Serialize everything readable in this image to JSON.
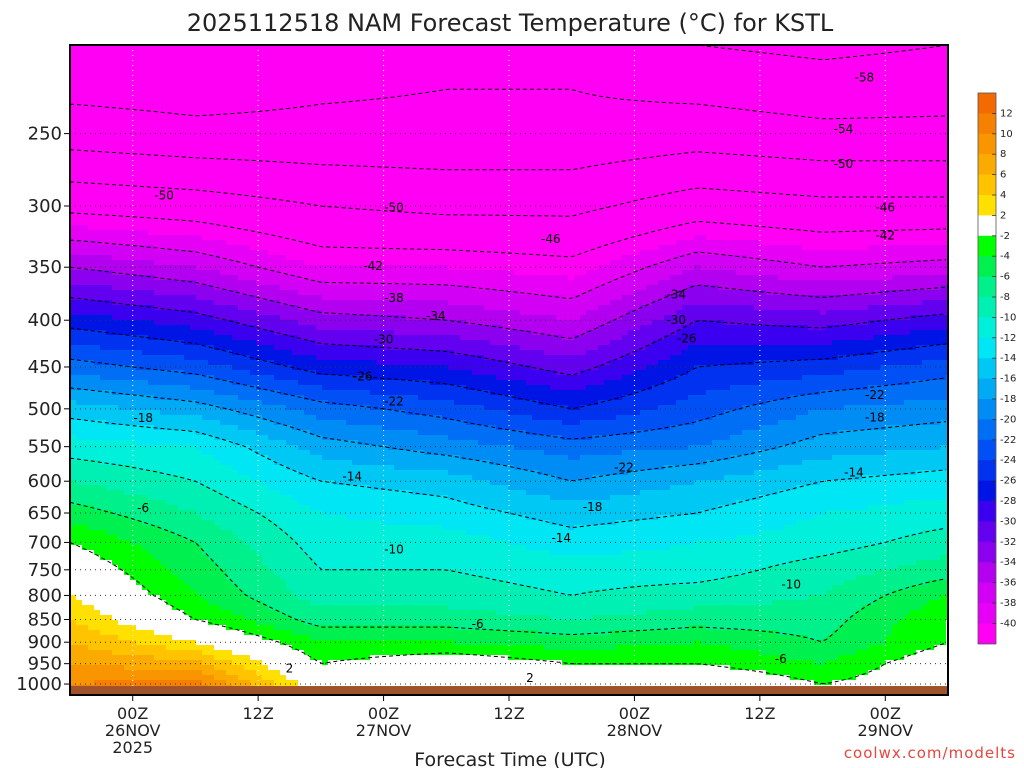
{
  "chart_data": {
    "type": "heatmap",
    "title": "2025112518 NAM Forecast Temperature (°C) for KSTL",
    "xlabel": "Forecast Time (UTC)",
    "ylabel": "",
    "y_axis": {
      "scale": "log-pressure",
      "inverted": true,
      "range": [
        1000,
        200
      ],
      "ticks": [
        250,
        300,
        350,
        400,
        450,
        500,
        550,
        600,
        650,
        700,
        750,
        800,
        850,
        900,
        950,
        1000
      ]
    },
    "x_axis": {
      "range": [
        "2025-11-25 18Z",
        "2025-11-29 06Z"
      ],
      "ticks": [
        {
          "time": "2025-11-26 00Z",
          "lines": [
            "00Z",
            "26NOV",
            "2025"
          ]
        },
        {
          "time": "2025-11-26 12Z",
          "lines": [
            "12Z"
          ]
        },
        {
          "time": "2025-11-27 00Z",
          "lines": [
            "00Z",
            "27NOV"
          ]
        },
        {
          "time": "2025-11-27 12Z",
          "lines": [
            "12Z"
          ]
        },
        {
          "time": "2025-11-28 00Z",
          "lines": [
            "00Z",
            "28NOV"
          ]
        },
        {
          "time": "2025-11-28 12Z",
          "lines": [
            "12Z"
          ]
        },
        {
          "time": "2025-11-29 00Z",
          "lines": [
            "00Z",
            "29NOV"
          ]
        }
      ]
    },
    "grid": true,
    "legend": "right",
    "colorbar": {
      "labels": [
        "12",
        "10",
        "8",
        "6",
        "4",
        "2",
        "-2",
        "-4",
        "-6",
        "-8",
        "-10",
        "-12",
        "-14",
        "-16",
        "-18",
        "-20",
        "-22",
        "-24",
        "-26",
        "-28",
        "-30",
        "-32",
        "-34",
        "-36",
        "-38",
        "-40"
      ],
      "bands": [
        {
          "range": [
            12,
            14
          ],
          "color": "#f36a00"
        },
        {
          "range": [
            10,
            12
          ],
          "color": "#f68000"
        },
        {
          "range": [
            8,
            10
          ],
          "color": "#f89500"
        },
        {
          "range": [
            6,
            8
          ],
          "color": "#fbaa00"
        },
        {
          "range": [
            4,
            6
          ],
          "color": "#ffc300"
        },
        {
          "range": [
            2,
            4
          ],
          "color": "#ffe000"
        },
        {
          "range": [
            -2,
            2
          ],
          "color": "#ffffff"
        },
        {
          "range": [
            -4,
            -2
          ],
          "color": "#00ff00"
        },
        {
          "range": [
            -6,
            -4
          ],
          "color": "#00f050"
        },
        {
          "range": [
            -8,
            -6
          ],
          "color": "#00f08c"
        },
        {
          "range": [
            -10,
            -8
          ],
          "color": "#00f0b4"
        },
        {
          "range": [
            -12,
            -10
          ],
          "color": "#00f0dc"
        },
        {
          "range": [
            -14,
            -12
          ],
          "color": "#00e6f5"
        },
        {
          "range": [
            -16,
            -14
          ],
          "color": "#00c8f5"
        },
        {
          "range": [
            -18,
            -16
          ],
          "color": "#00aaf5"
        },
        {
          "range": [
            -20,
            -18
          ],
          "color": "#008cf5"
        },
        {
          "range": [
            -22,
            -20
          ],
          "color": "#006ef5"
        },
        {
          "range": [
            -24,
            -22
          ],
          "color": "#0050f5"
        },
        {
          "range": [
            -26,
            -24
          ],
          "color": "#0032f0"
        },
        {
          "range": [
            -28,
            -26
          ],
          "color": "#0014e6"
        },
        {
          "range": [
            -30,
            -28
          ],
          "color": "#3c00f0"
        },
        {
          "range": [
            -32,
            -30
          ],
          "color": "#6400f0"
        },
        {
          "range": [
            -34,
            -32
          ],
          "color": "#8c00f0"
        },
        {
          "range": [
            -36,
            -34
          ],
          "color": "#b400f0"
        },
        {
          "range": [
            -38,
            -36
          ],
          "color": "#d200f5"
        },
        {
          "range": [
            -40,
            -38
          ],
          "color": "#e600f5"
        },
        {
          "range": [
            -60,
            -40
          ],
          "color": "#ff00f5"
        }
      ]
    },
    "isotherm_profiles": [
      {
        "time": "2025-11-25 18Z",
        "points": [
          [
            1000,
            10
          ],
          [
            900,
            6
          ],
          [
            800,
            2
          ],
          [
            700,
            -2
          ],
          [
            650,
            -5
          ],
          [
            600,
            -8
          ],
          [
            550,
            -11
          ],
          [
            500,
            -15
          ],
          [
            450,
            -21
          ],
          [
            400,
            -27
          ],
          [
            350,
            -34
          ],
          [
            300,
            -43
          ],
          [
            250,
            -52
          ],
          [
            200,
            -58
          ]
        ]
      },
      {
        "time": "2025-11-26 06Z",
        "points": [
          [
            1000,
            11
          ],
          [
            900,
            2
          ],
          [
            850,
            -2
          ],
          [
            800,
            -4
          ],
          [
            700,
            -6
          ],
          [
            650,
            -8
          ],
          [
            600,
            -10
          ],
          [
            550,
            -12
          ],
          [
            500,
            -17
          ],
          [
            450,
            -23
          ],
          [
            400,
            -29
          ],
          [
            350,
            -36
          ],
          [
            300,
            -44
          ],
          [
            250,
            -53
          ],
          [
            200,
            -58
          ]
        ]
      },
      {
        "time": "2025-11-26 18Z",
        "points": [
          [
            1000,
            0
          ],
          [
            950,
            -2
          ],
          [
            900,
            -4
          ],
          [
            850,
            -7
          ],
          [
            800,
            -9
          ],
          [
            750,
            -10
          ],
          [
            700,
            -11
          ],
          [
            650,
            -12
          ],
          [
            600,
            -14
          ],
          [
            550,
            -17
          ],
          [
            500,
            -21
          ],
          [
            450,
            -27
          ],
          [
            400,
            -33
          ],
          [
            350,
            -40
          ],
          [
            300,
            -46
          ],
          [
            250,
            -53
          ],
          [
            200,
            -56
          ]
        ]
      },
      {
        "time": "2025-11-27 06Z",
        "points": [
          [
            1000,
            2
          ],
          [
            950,
            0
          ],
          [
            900,
            -4
          ],
          [
            850,
            -7
          ],
          [
            800,
            -9
          ],
          [
            750,
            -10
          ],
          [
            700,
            -11
          ],
          [
            650,
            -13
          ],
          [
            600,
            -15
          ],
          [
            550,
            -19
          ],
          [
            500,
            -23
          ],
          [
            450,
            -28
          ],
          [
            400,
            -34
          ],
          [
            350,
            -40
          ],
          [
            300,
            -47
          ],
          [
            250,
            -53
          ],
          [
            200,
            -55
          ]
        ]
      },
      {
        "time": "2025-11-27 18Z",
        "points": [
          [
            1000,
            -1
          ],
          [
            950,
            -2
          ],
          [
            900,
            -5
          ],
          [
            850,
            -8
          ],
          [
            800,
            -10
          ],
          [
            750,
            -11
          ],
          [
            700,
            -13
          ],
          [
            650,
            -15
          ],
          [
            600,
            -18
          ],
          [
            550,
            -21
          ],
          [
            500,
            -26
          ],
          [
            450,
            -31
          ],
          [
            400,
            -36
          ],
          [
            350,
            -41
          ],
          [
            300,
            -47
          ],
          [
            250,
            -53
          ],
          [
            200,
            -55
          ]
        ]
      },
      {
        "time": "2025-11-28 06Z",
        "points": [
          [
            1000,
            1
          ],
          [
            950,
            -2
          ],
          [
            900,
            -4
          ],
          [
            850,
            -7
          ],
          [
            800,
            -9
          ],
          [
            750,
            -11
          ],
          [
            700,
            -12
          ],
          [
            650,
            -14
          ],
          [
            600,
            -16
          ],
          [
            550,
            -20
          ],
          [
            500,
            -23
          ],
          [
            450,
            -26
          ],
          [
            400,
            -30
          ],
          [
            350,
            -36
          ],
          [
            300,
            -44
          ],
          [
            250,
            -52
          ],
          [
            200,
            -58
          ]
        ]
      },
      {
        "time": "2025-11-28 18Z",
        "points": [
          [
            1000,
            -2
          ],
          [
            950,
            -4
          ],
          [
            900,
            -6
          ],
          [
            850,
            -7
          ],
          [
            800,
            -8
          ],
          [
            750,
            -9
          ],
          [
            700,
            -11
          ],
          [
            650,
            -12
          ],
          [
            600,
            -14
          ],
          [
            550,
            -17
          ],
          [
            500,
            -20
          ],
          [
            450,
            -25
          ],
          [
            400,
            -31
          ],
          [
            350,
            -38
          ],
          [
            300,
            -45
          ],
          [
            250,
            -53
          ],
          [
            200,
            -59
          ]
        ]
      },
      {
        "time": "2025-11-29 06Z",
        "points": [
          [
            1000,
            0
          ],
          [
            950,
            0
          ],
          [
            900,
            -2
          ],
          [
            850,
            -2
          ],
          [
            800,
            -4
          ],
          [
            750,
            -7
          ],
          [
            700,
            -9
          ],
          [
            650,
            -11
          ],
          [
            600,
            -13
          ],
          [
            550,
            -16
          ],
          [
            500,
            -19
          ],
          [
            450,
            -23
          ],
          [
            400,
            -29
          ],
          [
            350,
            -37
          ],
          [
            300,
            -45
          ],
          [
            250,
            -53
          ],
          [
            200,
            -58
          ]
        ]
      }
    ],
    "contour_labels": [
      {
        "text": "-58",
        "time": "2025-11-28 22Z",
        "pressure": 217
      },
      {
        "text": "-54",
        "time": "2025-11-28 20Z",
        "pressure": 247
      },
      {
        "text": "-50",
        "time": "2025-11-28 20Z",
        "pressure": 270
      },
      {
        "text": "-50",
        "time": "2025-11-26 03Z",
        "pressure": 292
      },
      {
        "text": "-50",
        "time": "2025-11-27 01Z",
        "pressure": 301
      },
      {
        "text": "-46",
        "time": "2025-11-27 16Z",
        "pressure": 326
      },
      {
        "text": "-46",
        "time": "2025-11-29 00Z",
        "pressure": 301
      },
      {
        "text": "-42",
        "time": "2025-11-29 00Z",
        "pressure": 323
      },
      {
        "text": "-42",
        "time": "2025-11-26 23Z",
        "pressure": 349
      },
      {
        "text": "-38",
        "time": "2025-11-27 01Z",
        "pressure": 378
      },
      {
        "text": "-34",
        "time": "2025-11-27 05Z",
        "pressure": 396
      },
      {
        "text": "-34",
        "time": "2025-11-28 04Z",
        "pressure": 375
      },
      {
        "text": "-30",
        "time": "2025-11-27 00Z",
        "pressure": 420
      },
      {
        "text": "-30",
        "time": "2025-11-28 04Z",
        "pressure": 400
      },
      {
        "text": "-26",
        "time": "2025-11-26 22Z",
        "pressure": 461
      },
      {
        "text": "-26",
        "time": "2025-11-28 05Z",
        "pressure": 419
      },
      {
        "text": "-22",
        "time": "2025-11-27 01Z",
        "pressure": 491
      },
      {
        "text": "-22",
        "time": "2025-11-28 23Z",
        "pressure": 483
      },
      {
        "text": "-22",
        "time": "2025-11-27 23Z",
        "pressure": 580
      },
      {
        "text": "-18",
        "time": "2025-11-26 01Z",
        "pressure": 512
      },
      {
        "text": "-18",
        "time": "2025-11-28 23Z",
        "pressure": 511
      },
      {
        "text": "-18",
        "time": "2025-11-27 20Z",
        "pressure": 640
      },
      {
        "text": "-14",
        "time": "2025-11-26 21Z",
        "pressure": 593
      },
      {
        "text": "-14",
        "time": "2025-11-28 21Z",
        "pressure": 587
      },
      {
        "text": "-14",
        "time": "2025-11-27 17Z",
        "pressure": 692
      },
      {
        "text": "-10",
        "time": "2025-11-27 01Z",
        "pressure": 713
      },
      {
        "text": "-10",
        "time": "2025-11-28 15Z",
        "pressure": 778
      },
      {
        "text": "-6",
        "time": "2025-11-26 01Z",
        "pressure": 642
      },
      {
        "text": "-6",
        "time": "2025-11-27 09Z",
        "pressure": 860
      },
      {
        "text": "-6",
        "time": "2025-11-28 14Z",
        "pressure": 939
      },
      {
        "text": "2",
        "time": "2025-11-26 15Z",
        "pressure": 962
      },
      {
        "text": "2",
        "time": "2025-11-27 14Z",
        "pressure": 985
      }
    ]
  },
  "credit": "coolwx.com/modelts"
}
